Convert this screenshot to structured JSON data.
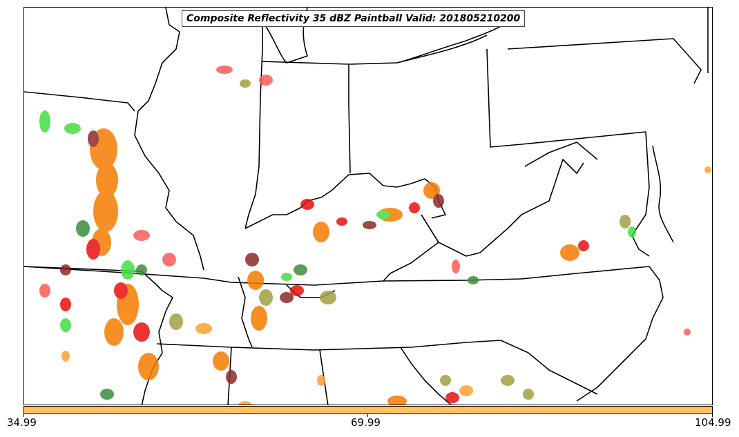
{
  "title": "Composite Reflectivity 35 dBZ Paintball Valid: 201805210200",
  "colorbar": {
    "color": "#ffc266",
    "ticks": [
      "34.99",
      "69.99",
      "104.99"
    ]
  },
  "palette": {
    "orange": "#f57c00",
    "red": "#e8100f",
    "light_red": "#ff5a5a",
    "light_green": "#44dd44",
    "dark_green": "#3c8c3c",
    "olive": "#a0a040",
    "maroon": "#8b2a2a",
    "light_orange": "#ffa030"
  },
  "map_region": "Central and Eastern United States"
}
